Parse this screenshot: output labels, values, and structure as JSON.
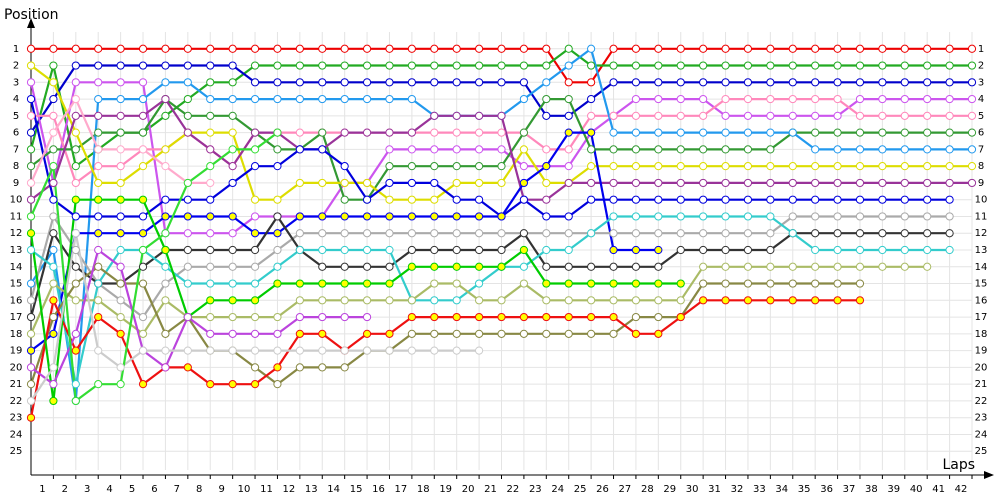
{
  "chart_data": {
    "type": "line",
    "y_label": "Position",
    "x_label": "Laps",
    "x": [
      0,
      1,
      2,
      3,
      4,
      5,
      6,
      7,
      8,
      9,
      10,
      11,
      12,
      13,
      14,
      15,
      16,
      17,
      18,
      19,
      20,
      21,
      22,
      23,
      24,
      25,
      26,
      27,
      28,
      29,
      30,
      31,
      32,
      33,
      34,
      35,
      36,
      37,
      38,
      39,
      40,
      41,
      42
    ],
    "xlim": [
      0,
      42
    ],
    "xticks": [
      1,
      2,
      3,
      4,
      5,
      6,
      7,
      8,
      9,
      10,
      11,
      12,
      13,
      14,
      15,
      16,
      17,
      18,
      19,
      20,
      21,
      22,
      23,
      24,
      25,
      26,
      27,
      28,
      29,
      30,
      31,
      32,
      33,
      34,
      35,
      36,
      37,
      38,
      39,
      40,
      41,
      42
    ],
    "ylim": [
      26,
      0
    ],
    "yticks": [
      1,
      2,
      3,
      4,
      5,
      6,
      7,
      8,
      9,
      10,
      11,
      12,
      13,
      14,
      15,
      16,
      17,
      18,
      19,
      20,
      21,
      22,
      23,
      24,
      25
    ],
    "grid": true,
    "series": [
      {
        "color": "#ee0000",
        "marker_color": "#ffffff",
        "values": [
          1,
          1,
          1,
          1,
          1,
          1,
          1,
          1,
          1,
          1,
          1,
          1,
          1,
          1,
          1,
          1,
          1,
          1,
          1,
          1,
          1,
          1,
          1,
          1,
          3,
          3,
          1,
          1,
          1,
          1,
          1,
          1,
          1,
          1,
          1,
          1,
          1,
          1,
          1,
          1,
          1,
          1,
          1
        ]
      },
      {
        "color": "#22aa22",
        "marker_color": "#ffffff",
        "values": [
          7,
          2,
          8,
          7,
          6,
          6,
          5,
          4,
          3,
          3,
          2,
          2,
          2,
          2,
          2,
          2,
          2,
          2,
          2,
          2,
          2,
          2,
          2,
          2,
          1,
          2,
          2,
          2,
          2,
          2,
          2,
          2,
          2,
          2,
          2,
          2,
          2,
          2,
          2,
          2,
          2,
          2,
          2
        ]
      },
      {
        "color": "#0000cc",
        "marker_color": "#ffffff",
        "values": [
          6,
          4,
          2,
          2,
          2,
          2,
          2,
          2,
          2,
          2,
          3,
          3,
          3,
          3,
          3,
          3,
          3,
          3,
          3,
          3,
          3,
          3,
          3,
          5,
          5,
          4,
          3,
          3,
          3,
          3,
          3,
          3,
          3,
          3,
          3,
          3,
          3,
          3,
          3,
          3,
          3,
          3,
          3
        ]
      },
      {
        "color": "#cc55ee",
        "marker_color": "#ffffff",
        "values": [
          3,
          9,
          3,
          3,
          3,
          3,
          12,
          12,
          12,
          12,
          11,
          11,
          11,
          11,
          9,
          9,
          7,
          7,
          7,
          7,
          7,
          7,
          8,
          8,
          8,
          6,
          5,
          4,
          4,
          4,
          4,
          5,
          5,
          5,
          5,
          5,
          5,
          4,
          4,
          4,
          4,
          4,
          4
        ]
      },
      {
        "color": "#ff88bb",
        "marker_color": "#ffffff",
        "values": [
          5,
          5,
          9,
          8,
          8,
          7,
          7,
          6,
          7,
          8,
          6,
          6,
          6,
          6,
          6,
          6,
          6,
          6,
          6,
          6,
          6,
          6,
          6,
          7,
          7,
          5,
          5,
          5,
          5,
          5,
          5,
          4,
          4,
          4,
          4,
          4,
          4,
          5,
          5,
          5,
          5,
          5,
          5
        ]
      },
      {
        "color": "#339933",
        "marker_color": "#ffffff",
        "values": [
          8,
          7,
          7,
          6,
          6,
          6,
          4,
          5,
          5,
          5,
          6,
          7,
          7,
          6,
          10,
          10,
          8,
          8,
          8,
          8,
          8,
          8,
          6,
          4,
          4,
          7,
          7,
          7,
          7,
          7,
          7,
          7,
          7,
          7,
          6,
          6,
          6,
          6,
          6,
          6,
          6,
          6,
          6
        ]
      },
      {
        "color": "#2299ee",
        "marker_color": "#ffffff",
        "values": [
          15,
          13,
          22,
          4,
          4,
          4,
          3,
          3,
          4,
          4,
          4,
          4,
          4,
          4,
          4,
          4,
          4,
          4,
          5,
          5,
          5,
          5,
          4,
          3,
          2,
          1,
          6,
          6,
          6,
          6,
          6,
          6,
          6,
          6,
          6,
          7,
          7,
          7,
          7,
          7,
          7,
          7,
          7
        ]
      },
      {
        "color": "#dddd00",
        "marker_color": "#ffffff",
        "values": [
          2,
          3,
          6,
          9,
          9,
          8,
          7,
          6,
          6,
          6,
          10,
          10,
          9,
          9,
          9,
          9,
          10,
          10,
          10,
          9,
          9,
          9,
          7,
          9,
          9,
          8,
          8,
          8,
          8,
          8,
          8,
          8,
          8,
          8,
          8,
          8,
          8,
          8,
          8,
          8,
          8,
          8,
          8
        ]
      },
      {
        "color": "#993399",
        "marker_color": "#ffffff",
        "values": [
          10,
          9,
          5,
          5,
          5,
          5,
          4,
          6,
          7,
          8,
          6,
          6,
          7,
          7,
          6,
          6,
          6,
          6,
          5,
          5,
          5,
          5,
          10,
          10,
          9,
          9,
          9,
          9,
          9,
          9,
          9,
          9,
          9,
          9,
          9,
          9,
          9,
          9,
          9,
          9,
          9,
          9,
          9
        ]
      },
      {
        "color": "#0000dd",
        "marker_color": "#ffffff",
        "values": [
          4,
          10,
          11,
          11,
          11,
          11,
          10,
          10,
          10,
          9,
          8,
          8,
          7,
          7,
          8,
          10,
          9,
          9,
          9,
          10,
          10,
          11,
          10,
          11,
          11,
          10,
          10,
          10,
          10,
          10,
          10,
          10,
          10,
          10,
          10,
          10,
          10,
          10,
          10,
          10,
          10,
          10,
          null
        ]
      },
      {
        "color": "#0000ee",
        "marker_color": "#ffff00",
        "values": [
          19,
          18,
          12,
          12,
          12,
          12,
          11,
          11,
          11,
          11,
          12,
          12,
          11,
          11,
          11,
          11,
          11,
          11,
          11,
          11,
          11,
          11,
          9,
          8,
          6,
          6,
          13,
          13,
          13,
          null,
          null,
          null,
          null,
          null,
          null,
          null,
          null,
          null,
          null,
          null,
          null,
          null,
          null
        ]
      },
      {
        "color": "#aaaaaa",
        "marker_color": "#ffffff",
        "values": [
          16,
          11,
          13,
          15,
          16,
          17,
          15,
          14,
          14,
          14,
          14,
          13,
          12,
          12,
          12,
          12,
          12,
          12,
          12,
          12,
          12,
          12,
          12,
          12,
          12,
          12,
          12,
          12,
          12,
          12,
          12,
          12,
          12,
          12,
          11,
          11,
          11,
          11,
          11,
          11,
          11,
          11,
          null
        ]
      },
      {
        "color": "#333333",
        "marker_color": "#ffffff",
        "values": [
          17,
          12,
          14,
          15,
          15,
          14,
          13,
          13,
          13,
          13,
          13,
          11,
          13,
          14,
          14,
          14,
          14,
          13,
          13,
          13,
          13,
          13,
          12,
          14,
          14,
          14,
          14,
          14,
          14,
          13,
          13,
          13,
          13,
          13,
          12,
          12,
          12,
          12,
          12,
          12,
          12,
          12,
          null
        ]
      },
      {
        "color": "#33cccc",
        "marker_color": "#ffffff",
        "values": [
          13,
          14,
          21,
          15,
          13,
          13,
          14,
          15,
          15,
          15,
          15,
          14,
          13,
          13,
          13,
          13,
          13,
          16,
          16,
          16,
          15,
          14,
          14,
          13,
          13,
          12,
          11,
          11,
          11,
          11,
          11,
          11,
          11,
          11,
          12,
          13,
          13,
          13,
          13,
          13,
          13,
          13,
          null
        ]
      },
      {
        "color": "#aabb66",
        "marker_color": "#ffffff",
        "values": [
          18,
          15,
          16,
          16,
          17,
          18,
          16,
          17,
          17,
          17,
          17,
          17,
          16,
          16,
          16,
          16,
          16,
          16,
          15,
          15,
          16,
          16,
          15,
          16,
          16,
          16,
          16,
          16,
          16,
          16,
          14,
          14,
          14,
          14,
          14,
          14,
          14,
          14,
          14,
          14,
          14,
          null,
          null
        ]
      },
      {
        "color": "#888844",
        "marker_color": "#ffffff",
        "values": [
          21,
          17,
          15,
          14,
          15,
          15,
          18,
          17,
          19,
          19,
          20,
          21,
          20,
          20,
          20,
          19,
          19,
          18,
          18,
          18,
          18,
          18,
          18,
          18,
          18,
          18,
          18,
          17,
          17,
          17,
          15,
          15,
          15,
          15,
          15,
          15,
          15,
          15,
          null,
          null,
          null,
          null,
          null
        ]
      },
      {
        "color": "#ee1111",
        "marker_color": "#ffff00",
        "values": [
          23,
          16,
          19,
          17,
          18,
          21,
          20,
          20,
          21,
          21,
          21,
          20,
          18,
          18,
          19,
          18,
          18,
          17,
          17,
          17,
          17,
          17,
          17,
          17,
          17,
          17,
          17,
          18,
          18,
          17,
          16,
          16,
          16,
          16,
          16,
          16,
          16,
          16,
          null,
          null,
          null,
          null,
          null
        ]
      },
      {
        "color": "#00cc00",
        "marker_color": "#ffff00",
        "values": [
          12,
          22,
          10,
          10,
          10,
          10,
          13,
          17,
          16,
          16,
          16,
          15,
          15,
          15,
          15,
          15,
          15,
          14,
          14,
          14,
          14,
          14,
          13,
          15,
          15,
          15,
          15,
          15,
          15,
          15,
          null,
          null,
          null,
          null,
          null,
          null,
          null,
          null,
          null,
          null,
          null,
          null,
          null
        ]
      },
      {
        "color": "#bb44dd",
        "marker_color": "#ffffff",
        "values": [
          20,
          21,
          18,
          13,
          14,
          19,
          20,
          17,
          18,
          18,
          18,
          18,
          17,
          17,
          17,
          17,
          null,
          null,
          null,
          null,
          null,
          null,
          null,
          null,
          null,
          null,
          null,
          null,
          null,
          null,
          null,
          null,
          null,
          null,
          null,
          null,
          null,
          null,
          null,
          null,
          null,
          null,
          null
        ]
      },
      {
        "color": "#cccccc",
        "marker_color": "#ffffff",
        "values": [
          22,
          20,
          12,
          19,
          20,
          19,
          19,
          19,
          19,
          19,
          19,
          19,
          19,
          19,
          19,
          19,
          19,
          19,
          19,
          19,
          19,
          null,
          null,
          null,
          null,
          null,
          null,
          null,
          null,
          null,
          null,
          null,
          null,
          null,
          null,
          null,
          null,
          null,
          null,
          null,
          null,
          null,
          null
        ]
      },
      {
        "color": "#ffaacc",
        "marker_color": "#ffffff",
        "values": [
          9,
          6,
          4,
          7,
          7,
          7,
          8,
          9,
          9,
          null,
          null,
          null,
          null,
          null,
          null,
          null,
          null,
          null,
          null,
          null,
          null,
          null,
          null,
          null,
          null,
          null,
          null,
          null,
          null,
          null,
          null,
          null,
          null,
          null,
          null,
          null,
          null,
          null,
          null,
          null,
          null,
          null,
          null
        ]
      },
      {
        "color": "#33dd33",
        "marker_color": "#ffffff",
        "values": [
          11,
          8,
          22,
          21,
          21,
          13,
          12,
          9,
          8,
          7,
          7,
          6,
          null,
          null,
          null,
          null,
          null,
          null,
          null,
          null,
          null,
          null,
          null,
          null,
          null,
          null,
          null,
          null,
          null,
          null,
          null,
          null,
          null,
          null,
          null,
          null,
          null,
          null,
          null,
          null,
          null,
          null,
          null
        ]
      }
    ]
  }
}
